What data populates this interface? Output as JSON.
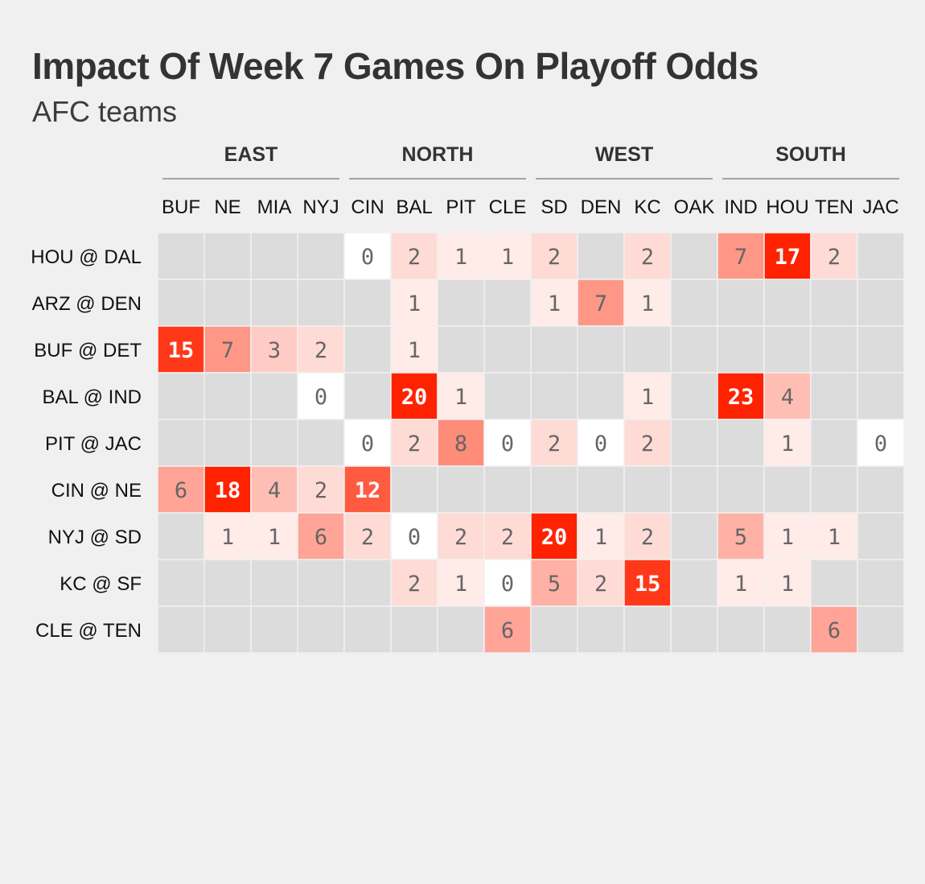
{
  "chart_data": {
    "type": "heatmap",
    "title": "Impact Of Week 7 Games On Playoff Odds",
    "subtitle": "AFC teams",
    "divisions": [
      {
        "name": "EAST",
        "teams": [
          "BUF",
          "NE",
          "MIA",
          "NYJ"
        ]
      },
      {
        "name": "NORTH",
        "teams": [
          "CIN",
          "BAL",
          "PIT",
          "CLE"
        ]
      },
      {
        "name": "WEST",
        "teams": [
          "SD",
          "DEN",
          "KC",
          "OAK"
        ]
      },
      {
        "name": "SOUTH",
        "teams": [
          "IND",
          "HOU",
          "TEN",
          "JAC"
        ]
      }
    ],
    "columns": [
      "BUF",
      "NE",
      "MIA",
      "NYJ",
      "CIN",
      "BAL",
      "PIT",
      "CLE",
      "SD",
      "DEN",
      "KC",
      "OAK",
      "IND",
      "HOU",
      "TEN",
      "JAC"
    ],
    "rows": [
      "HOU @ DAL",
      "ARZ @ DEN",
      "BUF @ DET",
      "BAL @ IND",
      "PIT @ JAC",
      "CIN @ NE",
      "NYJ @ SD",
      "KC @ SF",
      "CLE @ TEN"
    ],
    "values": [
      [
        null,
        null,
        null,
        null,
        0,
        2,
        1,
        1,
        2,
        null,
        2,
        null,
        7,
        17,
        2,
        null
      ],
      [
        null,
        null,
        null,
        null,
        null,
        1,
        null,
        null,
        1,
        7,
        1,
        null,
        null,
        null,
        null,
        null
      ],
      [
        15,
        7,
        3,
        2,
        null,
        1,
        null,
        null,
        null,
        null,
        null,
        null,
        null,
        null,
        null,
        null
      ],
      [
        null,
        null,
        null,
        0,
        null,
        20,
        1,
        null,
        null,
        null,
        1,
        null,
        23,
        4,
        null,
        null
      ],
      [
        null,
        null,
        null,
        null,
        0,
        2,
        8,
        0,
        2,
        0,
        2,
        null,
        null,
        1,
        null,
        0
      ],
      [
        6,
        18,
        4,
        2,
        12,
        null,
        null,
        null,
        null,
        null,
        null,
        null,
        null,
        null,
        null,
        null
      ],
      [
        null,
        1,
        1,
        6,
        2,
        0,
        2,
        2,
        20,
        1,
        2,
        null,
        5,
        1,
        1,
        null
      ],
      [
        null,
        null,
        null,
        null,
        null,
        2,
        1,
        0,
        5,
        2,
        15,
        null,
        1,
        1,
        null,
        null
      ],
      [
        null,
        null,
        null,
        null,
        null,
        null,
        null,
        6,
        null,
        null,
        null,
        null,
        null,
        null,
        6,
        null
      ]
    ],
    "colors": {
      "empty": "#dcdcdc",
      "low": "#ffffff",
      "high": "#ff2200",
      "text_dark": "#666666",
      "text_light": "#ffffff",
      "grid": "#f0f0f0"
    },
    "grid": false
  }
}
